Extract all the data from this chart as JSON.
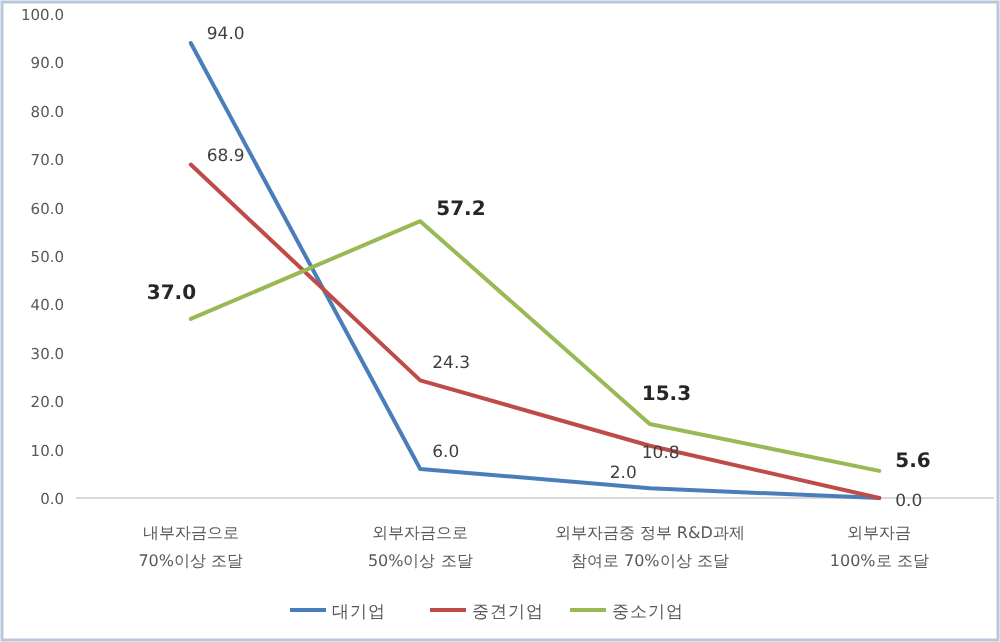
{
  "chart_data": {
    "type": "line",
    "categories": [
      "내부자금으로\n70%이상 조달",
      "외부자금으로\n50%이상 조달",
      "외부자금중 정부 R&D과제\n참여로 70%이상 조달",
      "외부자금\n100%로 조달"
    ],
    "series": [
      {
        "name": "대기업",
        "color": "#4a7ebb",
        "values": [
          94.0,
          6.0,
          2.0,
          0.0
        ],
        "value_labels": [
          "94.0",
          "6.0",
          "2.0",
          "0.0"
        ]
      },
      {
        "name": "중견기업",
        "color": "#be4b48",
        "values": [
          68.9,
          24.3,
          10.8,
          0.0
        ],
        "value_labels": [
          "68.9",
          "24.3",
          "10.8",
          null
        ]
      },
      {
        "name": "중소기업",
        "color": "#98b954",
        "values": [
          37.0,
          57.2,
          15.3,
          5.6
        ],
        "value_labels": [
          "37.0",
          "57.2",
          "15.3",
          "5.6"
        ]
      }
    ],
    "ylim": [
      0,
      100
    ],
    "yticks": [
      {
        "value": 0,
        "label": "0.0"
      },
      {
        "value": 10,
        "label": "10.0"
      },
      {
        "value": 20,
        "label": "20.0"
      },
      {
        "value": 30,
        "label": "30.0"
      },
      {
        "value": 40,
        "label": "40.0"
      },
      {
        "value": 50,
        "label": "50.0"
      },
      {
        "value": 60,
        "label": "60.0"
      },
      {
        "value": 70,
        "label": "70.0"
      },
      {
        "value": 80,
        "label": "80.0"
      },
      {
        "value": 90,
        "label": "90.0"
      },
      {
        "value": 100,
        "label": "100.0"
      }
    ],
    "grid": false,
    "legend": "bottom",
    "marker": "none",
    "line_style": "solid"
  }
}
